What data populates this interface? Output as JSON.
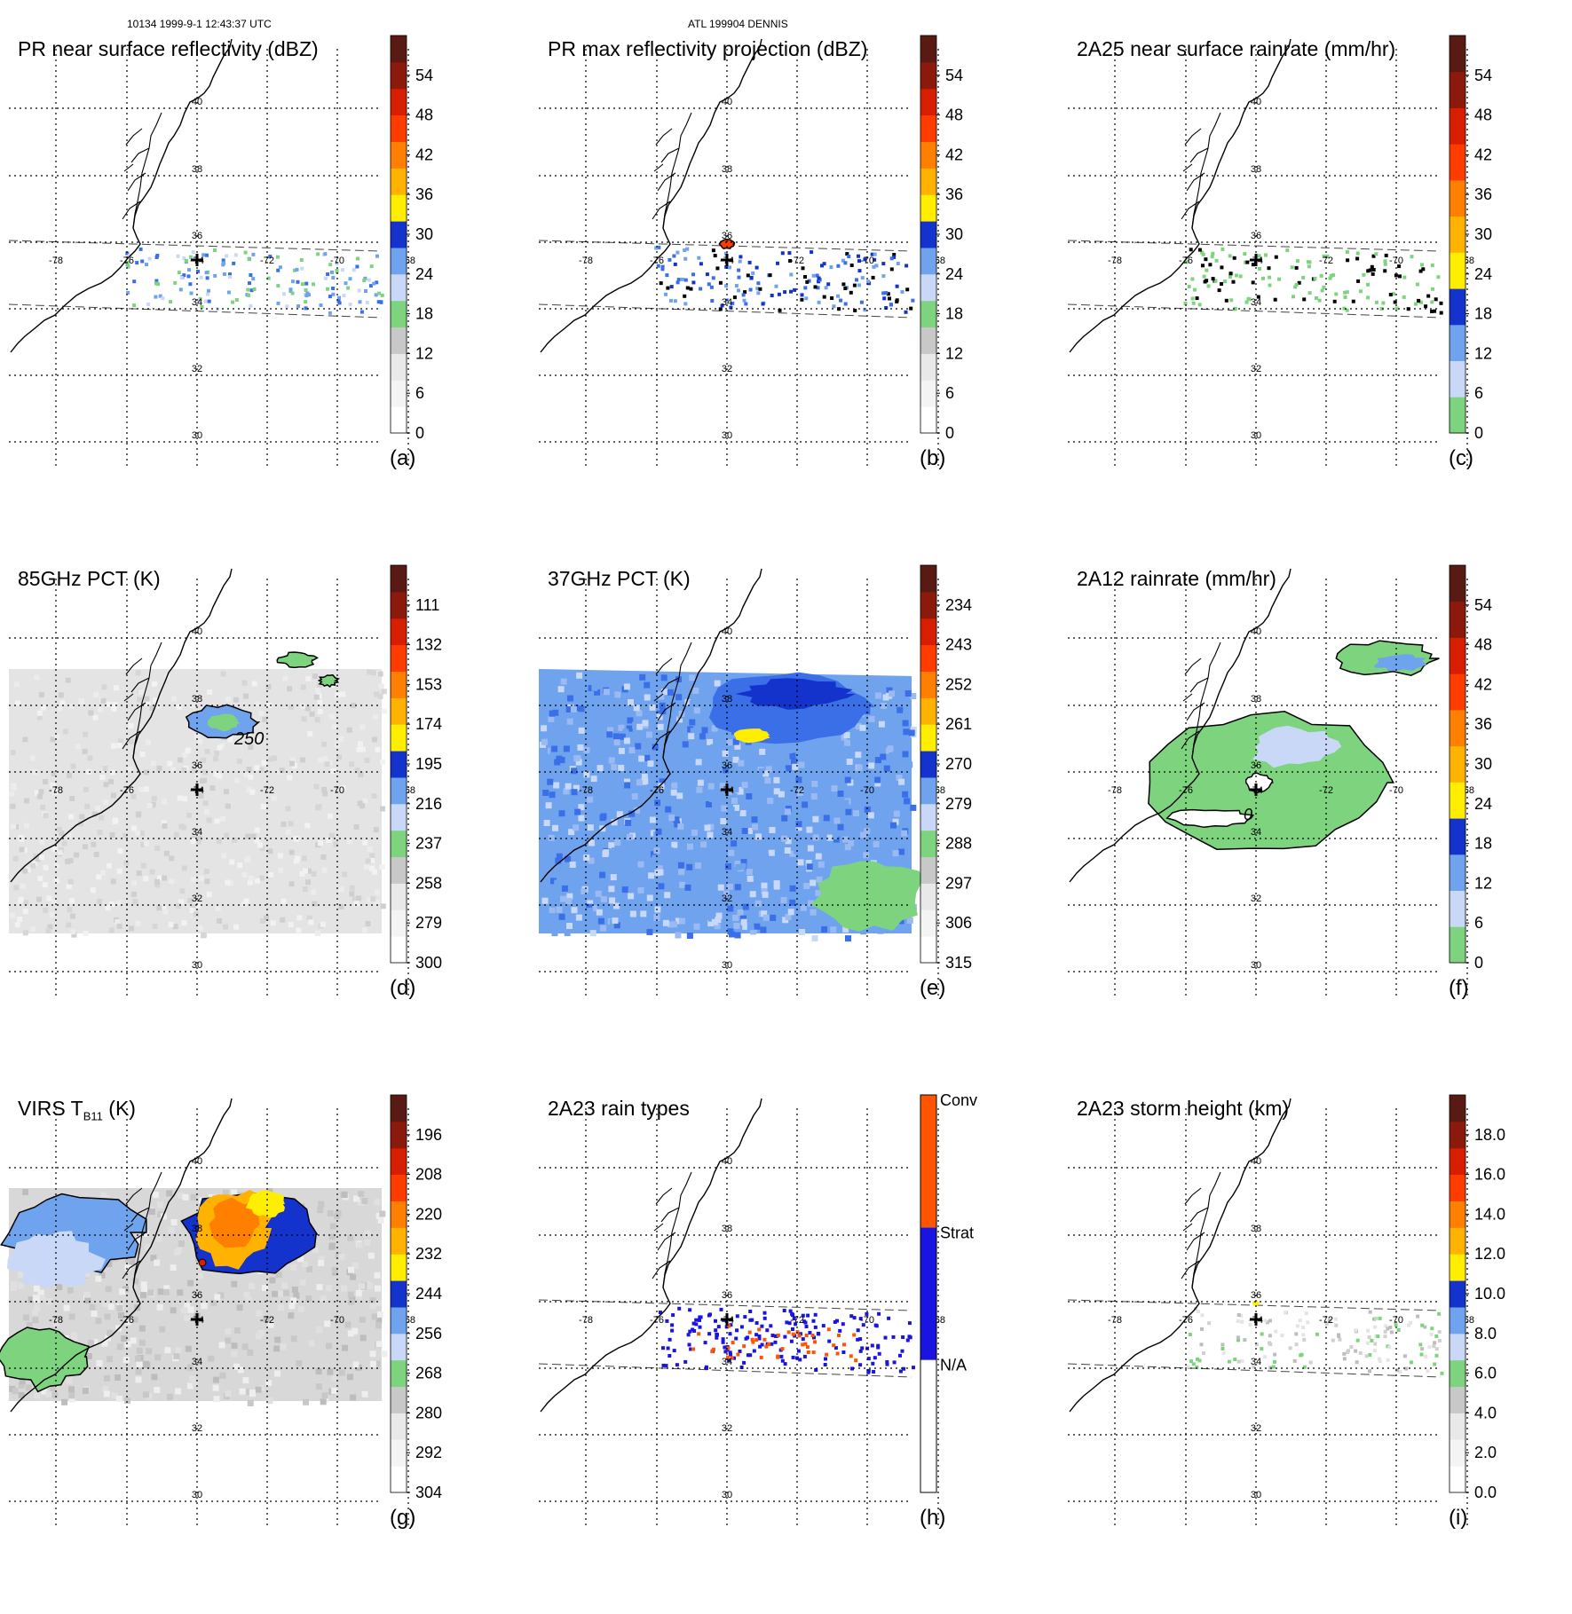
{
  "header": {
    "orbit_time": "10134 1999-9-1 12:43:37 UTC",
    "storm": "ATL 199904 DENNIS"
  },
  "map_labels": {
    "lat": [
      "40",
      "38",
      "36",
      "34",
      "32",
      "30"
    ],
    "lon": [
      "-78",
      "-76",
      "-74",
      "-72",
      "-70",
      "-68"
    ]
  },
  "colors": {
    "c_gray_light": "#e9e9e9",
    "c_gray_mid": "#c8c8c8",
    "c_gray_dark": "#9a9a9a",
    "c_green": "#7ed47e",
    "c_blue_light": "#c8d8f6",
    "c_blue_mid": "#6fa3ee",
    "c_blue_bright": "#3b6fe8",
    "c_blue_dark": "#1432cc",
    "c_yellow": "#ffee00",
    "c_orange_light": "#ffb200",
    "c_orange": "#ff7f00",
    "c_red_orange": "#ff3c00",
    "c_red": "#d81e00",
    "c_dark_red": "#8c1a0c",
    "c_brown": "#5a1a14",
    "rain_conv": "#ff5500",
    "rain_strat": "#1a14e0",
    "rain_na": "#ffffff"
  },
  "chart_data": [
    {
      "id": "a",
      "type": "heatmap",
      "label": "(a)",
      "title": "PR near surface reflectivity (dBZ)",
      "colorbar": {
        "min": 0,
        "max": 60,
        "ticks": [
          "0",
          "6",
          "12",
          "18",
          "24",
          "30",
          "36",
          "42",
          "48",
          "54"
        ]
      },
      "swath": "pr"
    },
    {
      "id": "b",
      "type": "heatmap",
      "label": "(b)",
      "title": "PR max reflectivity projection (dBZ)",
      "colorbar": {
        "min": 0,
        "max": 60,
        "ticks": [
          "0",
          "6",
          "12",
          "18",
          "24",
          "30",
          "36",
          "42",
          "48",
          "54"
        ]
      },
      "swath": "pr"
    },
    {
      "id": "c",
      "type": "heatmap",
      "label": "(c)",
      "title": "2A25 near surface rainrate (mm/hr)",
      "colorbar": {
        "min": 0,
        "max": 60,
        "ticks": [
          "0",
          "6",
          "12",
          "18",
          "24",
          "30",
          "36",
          "42",
          "48",
          "54"
        ]
      },
      "swath": "pr"
    },
    {
      "id": "d",
      "type": "heatmap",
      "label": "(d)",
      "title": "85GHz PCT (K)",
      "contour_label": "250",
      "colorbar": {
        "min": 300,
        "max": 90,
        "ticks": [
          "300",
          "279",
          "258",
          "237",
          "216",
          "195",
          "174",
          "153",
          "132",
          "111"
        ]
      },
      "swath": "tmi"
    },
    {
      "id": "e",
      "type": "heatmap",
      "label": "(e)",
      "title": "37GHz PCT (K)",
      "colorbar": {
        "min": 315,
        "max": 225,
        "ticks": [
          "315",
          "306",
          "297",
          "288",
          "279",
          "270",
          "261",
          "252",
          "243",
          "234"
        ]
      },
      "swath": "tmi"
    },
    {
      "id": "f",
      "type": "heatmap",
      "label": "(f)",
      "title": "2A12 rainrate (mm/hr)",
      "contour_label": "0",
      "colorbar": {
        "min": 0,
        "max": 60,
        "ticks": [
          "0",
          "6",
          "12",
          "18",
          "24",
          "30",
          "36",
          "42",
          "48",
          "54"
        ]
      },
      "swath": "tmi"
    },
    {
      "id": "g",
      "type": "heatmap",
      "label": "(g)",
      "title_main": "VIRS T",
      "title_sub": "B11",
      "title_end": " (K)",
      "colorbar": {
        "min": 304,
        "max": 184,
        "ticks": [
          "304",
          "292",
          "280",
          "268",
          "256",
          "244",
          "232",
          "220",
          "208",
          "196"
        ]
      },
      "swath": "virs"
    },
    {
      "id": "h",
      "type": "heatmap",
      "label": "(h)",
      "title": "2A23 rain types",
      "colorbar": {
        "categories": [
          "N/A",
          "Strat",
          "Conv"
        ]
      },
      "swath": "pr"
    },
    {
      "id": "i",
      "type": "heatmap",
      "label": "(i)",
      "title": "2A23 storm height (km)",
      "colorbar": {
        "min": 0,
        "max": 20,
        "ticks": [
          "0.0",
          "2.0",
          "4.0",
          "6.0",
          "8.0",
          "10.0",
          "12.0",
          "14.0",
          "16.0",
          "18.0"
        ]
      },
      "swath": "pr"
    }
  ]
}
